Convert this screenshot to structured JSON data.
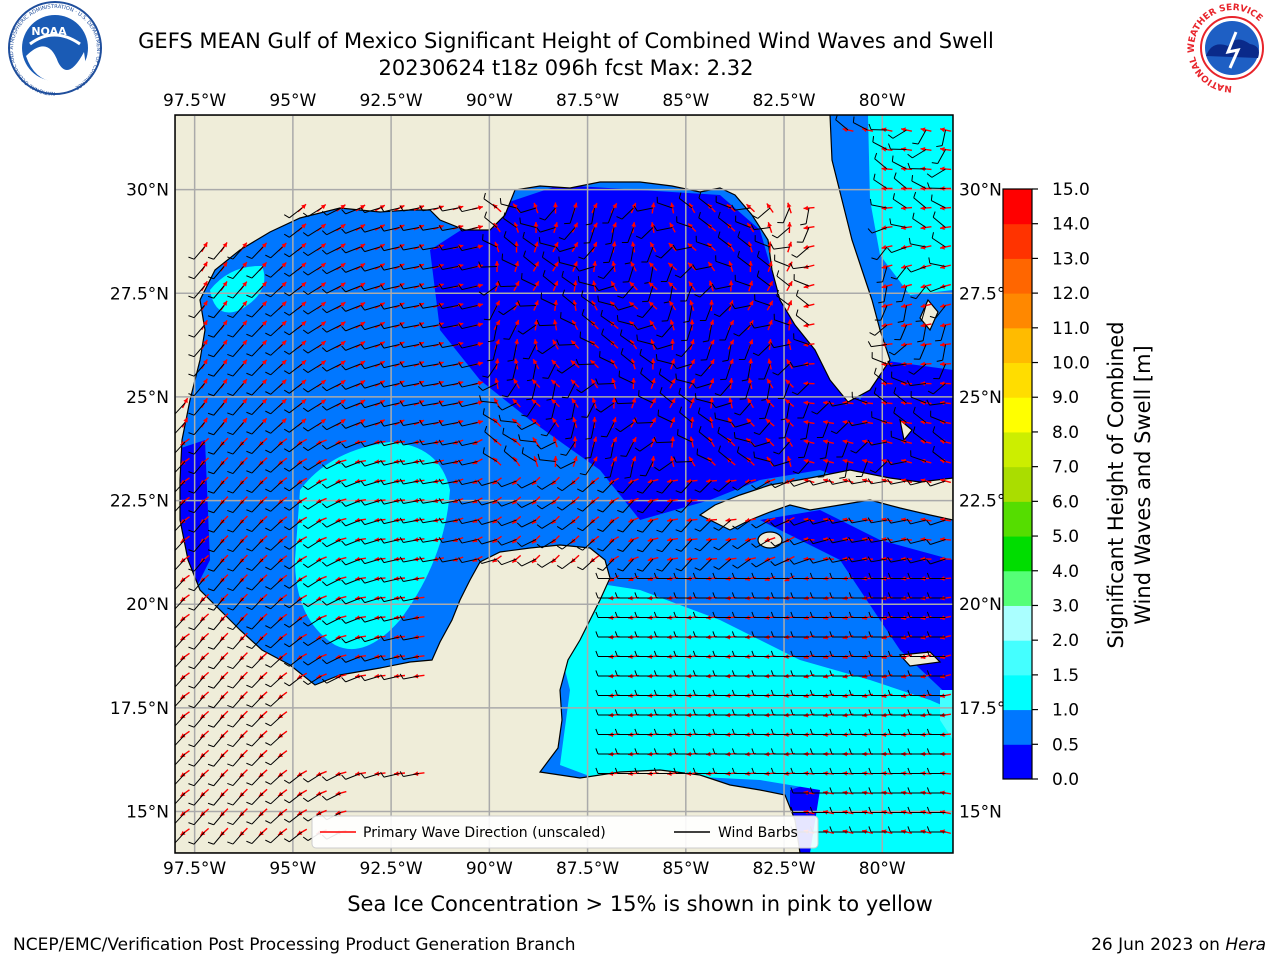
{
  "header": {
    "title_line1": "GEFS MEAN Gulf of Mexico Significant Height of Combined Wind Waves and Swell",
    "title_line2": "20230624 t18z 096h fcst   Max: 2.32"
  },
  "logos": {
    "noaa": {
      "label": "NOAA",
      "ring_text": "NATIONAL OCEANIC AND ATMOSPHERIC ADMINISTRATION · U.S. DEPARTMENT OF COMMERCE"
    },
    "nws": {
      "ring_text": "NATIONAL WEATHER SERVICE"
    }
  },
  "map": {
    "lon_labels": [
      "97.5°W",
      "95°W",
      "92.5°W",
      "90°W",
      "87.5°W",
      "85°W",
      "82.5°W",
      "80°W"
    ],
    "lat_labels": [
      "30°N",
      "27.5°N",
      "25°N",
      "22.5°N",
      "20°N",
      "17.5°N",
      "15°N"
    ],
    "lon_range": [
      -98.0,
      -78.2
    ],
    "lat_range": [
      14.0,
      31.8
    ],
    "land_color": "#efedd9",
    "arrow_color": "#ff0000",
    "barb_color": "#000000"
  },
  "legend": {
    "wave_label": "Primary Wave Direction (unscaled)",
    "barb_label": "Wind Barbs"
  },
  "colorbar": {
    "label_line1": "Significant Height of Combined",
    "label_line2": "Wind Waves and Swell [m]",
    "ticks": [
      "15.0",
      "14.0",
      "13.0",
      "12.0",
      "11.0",
      "10.0",
      "9.0",
      "8.0",
      "7.0",
      "6.0",
      "5.0",
      "4.0",
      "3.0",
      "2.0",
      "1.5",
      "1.0",
      "0.5",
      "0.0"
    ],
    "colors_bottom_to_top": [
      "#0000ff",
      "#0077ff",
      "#00ffff",
      "#44ffff",
      "#aaffff",
      "#55ff77",
      "#00dd00",
      "#55dd00",
      "#aadd00",
      "#ccee00",
      "#ffff00",
      "#ffdd00",
      "#ffbb00",
      "#ff8800",
      "#ff6600",
      "#ff3300",
      "#ff0000"
    ]
  },
  "footer": {
    "ice_note": "Sea Ice Concentration > 15% is shown in pink to yellow",
    "branch": "NCEP/EMC/Verification Post Processing Product Generation Branch",
    "date": "26 Jun 2023 on ",
    "machine": "Hera"
  }
}
